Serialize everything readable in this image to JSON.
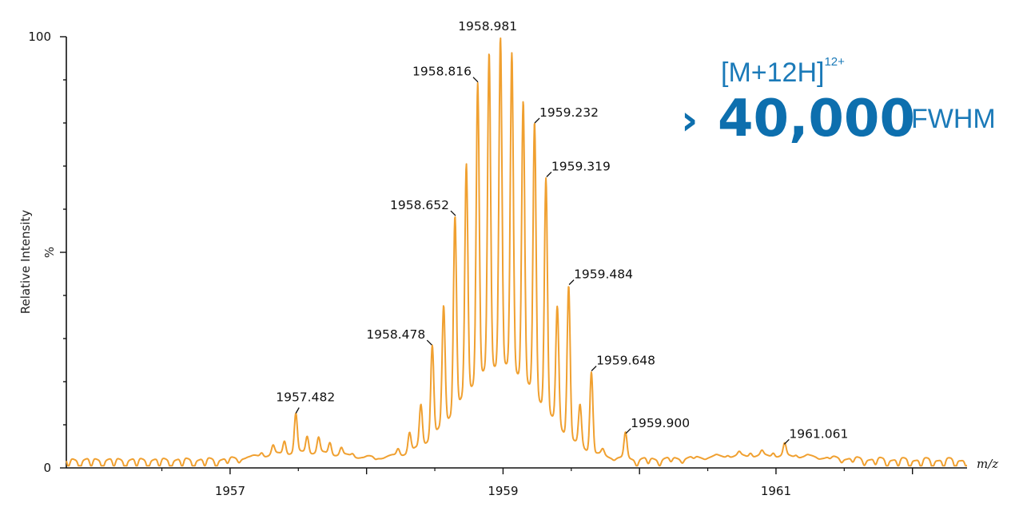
{
  "chart_data": {
    "type": "line",
    "xlabel": "m/z",
    "ylabel": "Relative Intensity",
    "ylabel_unit": "%",
    "xlim": [
      1955.8,
      1962.4
    ],
    "ylim": [
      0,
      100
    ],
    "xticks": [
      1957,
      1958,
      1959,
      1960,
      1961,
      1962
    ],
    "xtick_labels": [
      "1957",
      "",
      "1959",
      "",
      "1961",
      ""
    ],
    "ytick_labels": [
      {
        "value": 0,
        "label": "0"
      },
      {
        "value": 100,
        "label": "100"
      }
    ],
    "line_color": "#f0a030",
    "peak_spacing": 0.0833,
    "baseline": 2,
    "labeled_peaks": [
      {
        "label": "1957.482",
        "x": 1957.482,
        "y": 12.5
      },
      {
        "label": "1958.478",
        "x": 1958.478,
        "y": 28.5
      },
      {
        "label": "1958.652",
        "x": 1958.652,
        "y": 58.5
      },
      {
        "label": "1958.816",
        "x": 1958.816,
        "y": 89.5
      },
      {
        "label": "1958.981",
        "x": 1958.981,
        "y": 100
      },
      {
        "label": "1959.232",
        "x": 1959.232,
        "y": 80
      },
      {
        "label": "1959.319",
        "x": 1959.319,
        "y": 67.5
      },
      {
        "label": "1959.484",
        "x": 1959.484,
        "y": 42.5
      },
      {
        "label": "1959.648",
        "x": 1959.648,
        "y": 22.5
      },
      {
        "label": "1959.900",
        "x": 1959.9,
        "y": 8
      },
      {
        "label": "1961.061",
        "x": 1961.061,
        "y": 5.5
      }
    ]
  },
  "annotation": {
    "ion": "[M+12H]",
    "charge": "12+",
    "prefix": "›",
    "value": "40,000",
    "unit": "FWHM"
  }
}
